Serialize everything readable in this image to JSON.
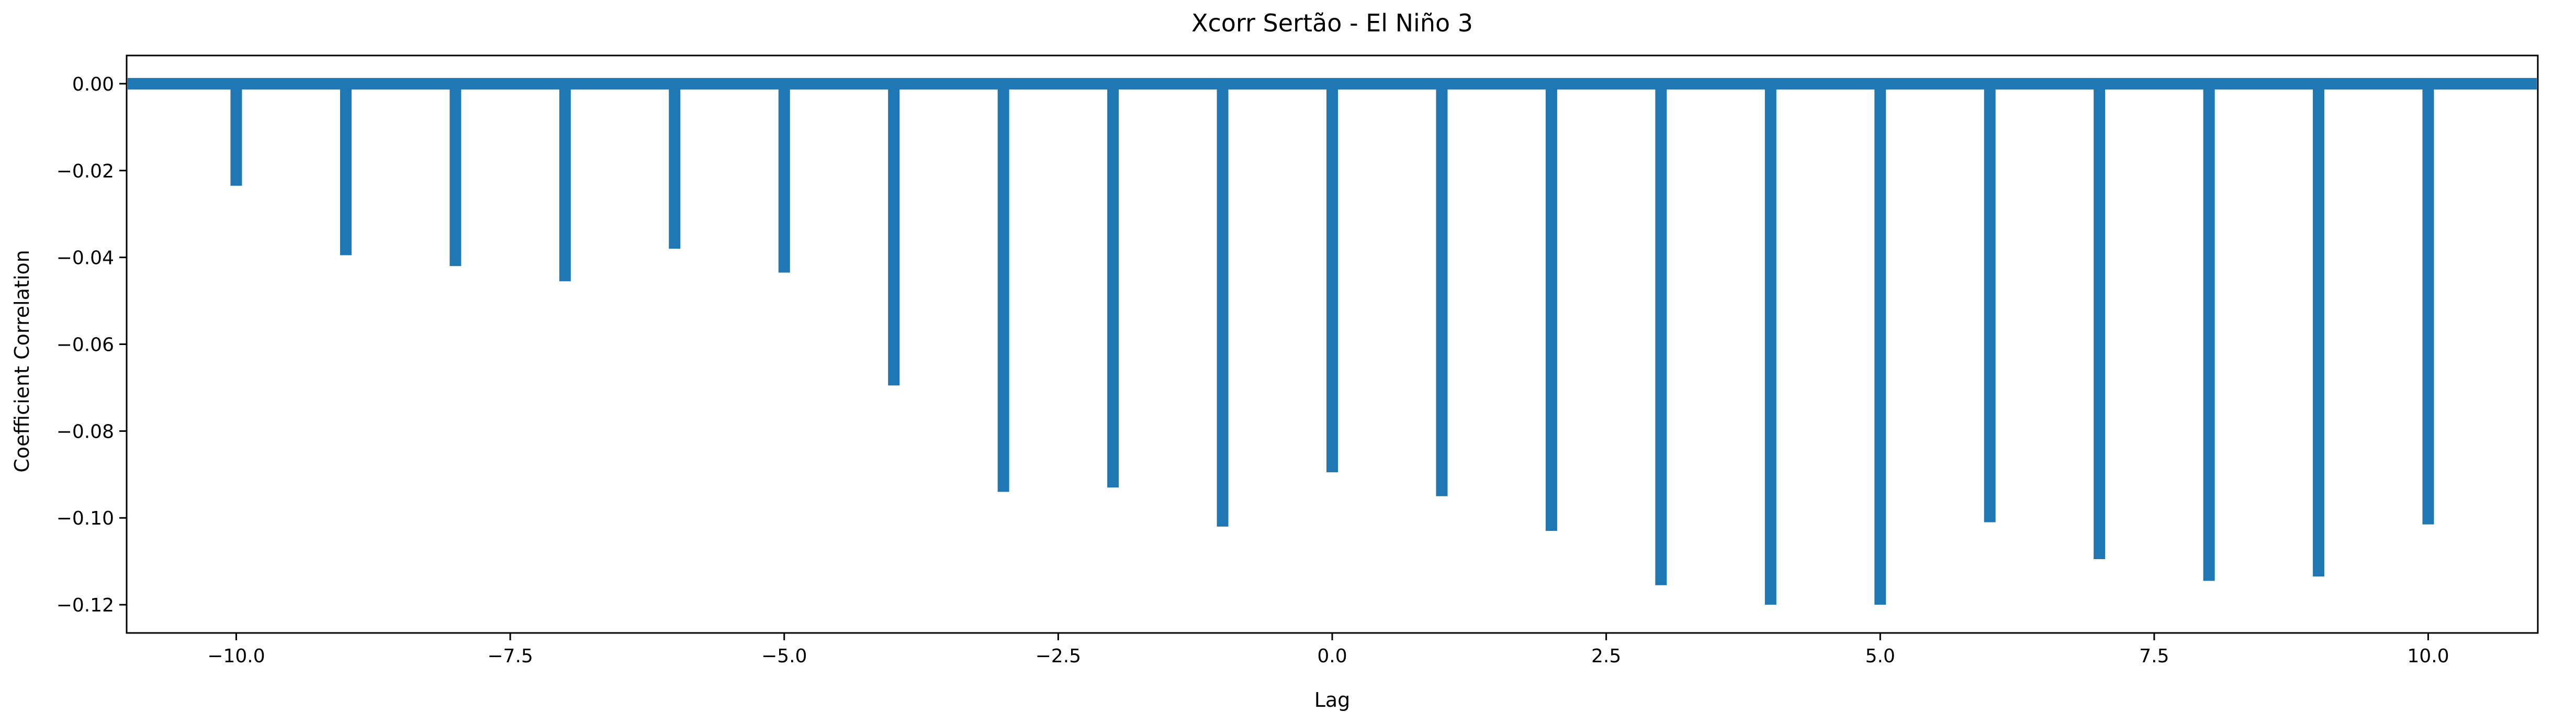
{
  "chart_data": {
    "type": "bar",
    "title": "Xcorr Sertão - El Niño 3",
    "xlabel": "Lag",
    "ylabel": "Coefficient Correlation",
    "xlim": [
      -11,
      11
    ],
    "ylim": [
      -0.1265,
      0.0065
    ],
    "x": [
      -10,
      -9,
      -8,
      -7,
      -6,
      -5,
      -4,
      -3,
      -2,
      -1,
      0,
      1,
      2,
      3,
      4,
      5,
      6,
      7,
      8,
      9,
      10
    ],
    "values": [
      -0.0235,
      -0.0395,
      -0.042,
      -0.0455,
      -0.038,
      -0.0435,
      -0.0695,
      -0.094,
      -0.093,
      -0.102,
      -0.0895,
      -0.095,
      -0.103,
      -0.1155,
      -0.12,
      -0.12,
      -0.101,
      -0.1095,
      -0.1145,
      -0.1135,
      -0.1015
    ],
    "baseline": 0.0,
    "xticks": [
      -10.0,
      -7.5,
      -5.0,
      -2.5,
      0.0,
      2.5,
      5.0,
      7.5,
      10.0
    ],
    "xtick_labels": [
      "−10.0",
      "−7.5",
      "−5.0",
      "−2.5",
      "0.0",
      "2.5",
      "5.0",
      "7.5",
      "10.0"
    ],
    "yticks": [
      0.0,
      -0.02,
      -0.04,
      -0.06,
      -0.08,
      -0.1,
      -0.12
    ],
    "ytick_labels": [
      "0.00",
      "−0.02",
      "−0.04",
      "−0.06",
      "−0.08",
      "−0.10",
      "−0.12"
    ],
    "color": "#1f77b4",
    "grid": false,
    "legend": "none"
  }
}
